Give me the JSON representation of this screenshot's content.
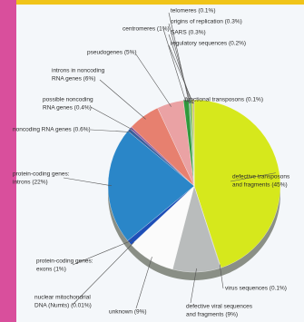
{
  "chart_data": {
    "type": "pie",
    "categories": [
      [
        "defective transposons",
        "and fragments (45%)"
      ],
      [
        "virus sequences (0.1%)"
      ],
      [
        "defective viral sequences",
        "and fragments (9%)"
      ],
      [
        "unknown (9%)"
      ],
      [
        "nuclear mitochondrial",
        "DNA (Numts) (0.01%)"
      ],
      [
        "protein-coding genes:",
        "exons (1%)"
      ],
      [
        "protein-coding genes:",
        "introns (22%)"
      ],
      [
        "noncoding RNA genes (0.6%)"
      ],
      [
        "possible noncoding",
        "RNA genes (0.4%)"
      ],
      [
        "introns in noncoding",
        "RNA genes (6%)"
      ],
      [
        "pseudogenes (5%)"
      ],
      [
        "centromeres (1%)"
      ],
      [
        "telomeres (0.1%)"
      ],
      [
        "origins of replication (0.3%)"
      ],
      [
        "SARS (0.3%)"
      ],
      [
        "regulatory sequences (0.2%)"
      ],
      [
        "functional transposons (0.1%)"
      ]
    ],
    "values": [
      45,
      0.1,
      9,
      9,
      0.01,
      1,
      22,
      0.6,
      0.4,
      6,
      5,
      1,
      0.1,
      0.3,
      0.3,
      0.2,
      0.1
    ],
    "colors": [
      "#d6e81c",
      "#7c7c7c",
      "#b9bcbc",
      "#fbfbfb",
      "#9a9a9a",
      "#1e4fb8",
      "#2a86c8",
      "#3a5f9c",
      "#8a5aa0",
      "#e7806f",
      "#eaa2a4",
      "#2f9a3c",
      "#1b5a22",
      "#4aa860",
      "#98c838",
      "#f4c93a",
      "#2f2f2f"
    ]
  }
}
